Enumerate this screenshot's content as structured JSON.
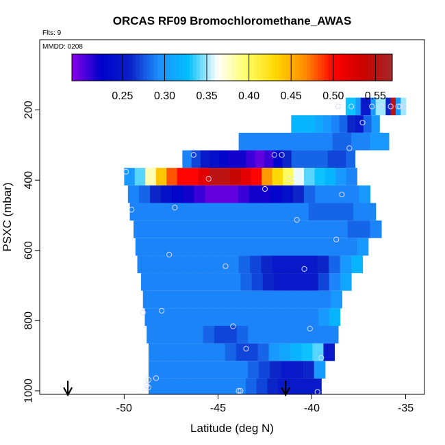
{
  "chart_data": {
    "type": "heatmap",
    "title": "ORCAS RF09 Bromochloromethane_AWAS",
    "subtitle_flts": "Flts: 9",
    "subtitle_mmdd": "MMDD: 0208",
    "xlabel": "Latitude (deg N)",
    "ylabel": "PSXC (mbar)",
    "xlim": [
      -54.5,
      -34.0
    ],
    "ylim": [
      1010,
      0
    ],
    "x_ticks": [
      -50,
      -45,
      -40,
      -35
    ],
    "x_tick_labels": [
      "-50",
      "-45",
      "-40",
      "-35"
    ],
    "y_ticks": [
      200,
      400,
      600,
      800,
      1000
    ],
    "y_tick_labels": [
      "200",
      "400",
      "600",
      "800",
      "1000"
    ],
    "colorbar": {
      "range": [
        0.19,
        0.57
      ],
      "ticks": [
        0.25,
        0.3,
        0.35,
        0.4,
        0.45,
        0.5,
        0.55
      ],
      "tick_labels": [
        "0.25",
        "0.30",
        "0.35",
        "0.40",
        "0.45",
        "0.50",
        "0.55"
      ],
      "colors": [
        "#8a00e6",
        "#0000cc",
        "#0a22c8",
        "#1e90ff",
        "#00bfff",
        "#ffffff",
        "#ffff66",
        "#ffd700",
        "#ff8c00",
        "#ff0000",
        "#cc0000",
        "#a52a2a"
      ]
    },
    "rows": [
      {
        "p": 190,
        "lat_start": -38.2,
        "lat_end": -35.0,
        "values": [
          0.33,
          0.33,
          0.3,
          0.25,
          0.25,
          0.3,
          0.35,
          0.35,
          0.26,
          0.55,
          0.3,
          0.35
        ]
      },
      {
        "p": 240,
        "lat_start": -41.1,
        "lat_end": -36.4,
        "values": [
          0.32,
          0.32,
          0.32,
          0.31,
          0.3,
          0.29,
          0.28,
          0.26,
          0.25,
          0.28,
          0.3
        ]
      },
      {
        "p": 290,
        "lat_start": -43.9,
        "lat_end": -35.9,
        "values": [
          0.29,
          0.29,
          0.29,
          0.29,
          0.29,
          0.29,
          0.29,
          0.29,
          0.29,
          0.29,
          0.28,
          0.28,
          0.29,
          0.29,
          0.3,
          0.3
        ]
      },
      {
        "p": 340,
        "lat_start": -46.9,
        "lat_end": -37.7,
        "values": [
          0.29,
          0.27,
          0.25,
          0.24,
          0.23,
          0.22,
          0.22,
          0.21,
          0.2,
          0.21,
          0.23,
          0.26,
          0.28,
          0.28,
          0.28,
          0.28,
          0.27,
          0.27,
          0.28
        ]
      },
      {
        "p": 390,
        "lat_start": -50.0,
        "lat_end": -37.6,
        "values": [
          0.3,
          0.34,
          0.38,
          0.44,
          0.48,
          0.5,
          0.5,
          0.52,
          0.55,
          0.55,
          0.54,
          0.52,
          0.5,
          0.46,
          0.43,
          0.4,
          0.36,
          0.34,
          0.33,
          0.32,
          0.3,
          0.29
        ]
      },
      {
        "p": 440,
        "lat_start": -49.8,
        "lat_end": -36.9,
        "values": [
          0.29,
          0.28,
          0.26,
          0.24,
          0.23,
          0.22,
          0.21,
          0.2,
          0.2,
          0.2,
          0.21,
          0.22,
          0.22,
          0.23,
          0.24,
          0.26,
          0.28,
          0.29,
          0.29,
          0.29,
          0.29,
          0.3
        ]
      },
      {
        "p": 490,
        "lat_start": -49.7,
        "lat_end": -36.6,
        "values": [
          0.29,
          0.29,
          0.29,
          0.29,
          0.29,
          0.29,
          0.29,
          0.29,
          0.29,
          0.29,
          0.29,
          0.29,
          0.29,
          0.29,
          0.29,
          0.29,
          0.28,
          0.28,
          0.28,
          0.28,
          0.29,
          0.29
        ]
      },
      {
        "p": 540,
        "lat_start": -49.5,
        "lat_end": -36.3,
        "values": [
          0.29,
          0.29,
          0.29,
          0.29,
          0.29,
          0.29,
          0.29,
          0.29,
          0.29,
          0.29,
          0.29,
          0.29,
          0.29,
          0.29,
          0.29,
          0.29,
          0.29,
          0.29,
          0.29,
          0.28,
          0.28,
          0.29
        ]
      },
      {
        "p": 590,
        "lat_start": -49.4,
        "lat_end": -37.0,
        "values": [
          0.29,
          0.29,
          0.29,
          0.29,
          0.29,
          0.29,
          0.29,
          0.29,
          0.29,
          0.29,
          0.29,
          0.29,
          0.29,
          0.29,
          0.29,
          0.29,
          0.29,
          0.29,
          0.29,
          0.29,
          0.3
        ]
      },
      {
        "p": 640,
        "lat_start": -49.3,
        "lat_end": -37.3,
        "values": [
          0.29,
          0.29,
          0.29,
          0.29,
          0.29,
          0.29,
          0.29,
          0.29,
          0.29,
          0.28,
          0.27,
          0.26,
          0.25,
          0.25,
          0.25,
          0.25,
          0.26,
          0.28,
          0.3,
          0.32
        ]
      },
      {
        "p": 690,
        "lat_start": -49.1,
        "lat_end": -37.9,
        "values": [
          0.29,
          0.29,
          0.29,
          0.29,
          0.29,
          0.29,
          0.29,
          0.29,
          0.29,
          0.28,
          0.27,
          0.26,
          0.25,
          0.25,
          0.25,
          0.25,
          0.27,
          0.29,
          0.31
        ]
      },
      {
        "p": 740,
        "lat_start": -49.0,
        "lat_end": -38.4,
        "values": [
          0.29,
          0.29,
          0.29,
          0.29,
          0.29,
          0.29,
          0.29,
          0.29,
          0.29,
          0.29,
          0.29,
          0.29,
          0.29,
          0.29,
          0.29,
          0.29,
          0.29,
          0.3
        ]
      },
      {
        "p": 790,
        "lat_start": -48.9,
        "lat_end": -38.5,
        "values": [
          0.29,
          0.29,
          0.29,
          0.29,
          0.29,
          0.29,
          0.29,
          0.29,
          0.29,
          0.29,
          0.29,
          0.29,
          0.29,
          0.29,
          0.29,
          0.29,
          0.3,
          0.32
        ]
      },
      {
        "p": 840,
        "lat_start": -48.8,
        "lat_end": -38.6,
        "values": [
          0.29,
          0.29,
          0.29,
          0.29,
          0.29,
          0.28,
          0.27,
          0.27,
          0.28,
          0.29,
          0.29,
          0.29,
          0.29,
          0.29,
          0.29,
          0.29,
          0.29
        ]
      },
      {
        "p": 890,
        "lat_start": -48.7,
        "lat_end": -38.8,
        "values": [
          0.29,
          0.29,
          0.29,
          0.29,
          0.29,
          0.29,
          0.29,
          0.28,
          0.27,
          0.27,
          0.28,
          0.3,
          0.31,
          0.32,
          0.33,
          0.34,
          0.25
        ]
      },
      {
        "p": 940,
        "lat_start": -48.7,
        "lat_end": -39.3,
        "values": [
          0.29,
          0.29,
          0.29,
          0.29,
          0.29,
          0.29,
          0.29,
          0.29,
          0.29,
          0.28,
          0.27,
          0.26,
          0.25,
          0.25,
          0.26,
          0.3
        ]
      },
      {
        "p": 990,
        "lat_start": -48.7,
        "lat_end": -39.5,
        "values": [
          0.29,
          0.29,
          0.29,
          0.29,
          0.29,
          0.29,
          0.29,
          0.29,
          0.29,
          0.28,
          0.27,
          0.26,
          0.25,
          0.25,
          0.25,
          0.25
        ]
      }
    ],
    "sample_points": [
      {
        "lat": -37.9,
        "p": 190
      },
      {
        "lat": -36.8,
        "p": 190
      },
      {
        "lat": -36.3,
        "p": 190
      },
      {
        "lat": -35.8,
        "p": 190
      },
      {
        "lat": -35.4,
        "p": 190
      },
      {
        "lat": -35.1,
        "p": 190
      },
      {
        "lat": -38.6,
        "p": 190
      },
      {
        "lat": -35.3,
        "p": 190
      },
      {
        "lat": -37.3,
        "p": 236
      },
      {
        "lat": -38.0,
        "p": 309
      },
      {
        "lat": -46.3,
        "p": 328
      },
      {
        "lat": -42.0,
        "p": 328
      },
      {
        "lat": -41.6,
        "p": 328
      },
      {
        "lat": -49.9,
        "p": 376
      },
      {
        "lat": -45.5,
        "p": 396
      },
      {
        "lat": -41.2,
        "p": 396
      },
      {
        "lat": -42.5,
        "p": 425
      },
      {
        "lat": -38.4,
        "p": 441
      },
      {
        "lat": -47.3,
        "p": 478
      },
      {
        "lat": -49.6,
        "p": 484
      },
      {
        "lat": -40.8,
        "p": 513
      },
      {
        "lat": -38.7,
        "p": 569
      },
      {
        "lat": -47.6,
        "p": 612
      },
      {
        "lat": -44.6,
        "p": 645
      },
      {
        "lat": -40.4,
        "p": 653
      },
      {
        "lat": -49.0,
        "p": 777
      },
      {
        "lat": -48.0,
        "p": 772
      },
      {
        "lat": -44.2,
        "p": 816
      },
      {
        "lat": -40.1,
        "p": 823
      },
      {
        "lat": -43.5,
        "p": 880
      },
      {
        "lat": -39.5,
        "p": 906
      },
      {
        "lat": -48.7,
        "p": 969
      },
      {
        "lat": -48.3,
        "p": 964
      },
      {
        "lat": -48.8,
        "p": 985
      },
      {
        "lat": -48.7,
        "p": 990
      },
      {
        "lat": -43.9,
        "p": 1000
      },
      {
        "lat": -43.8,
        "p": 1000
      },
      {
        "lat": -39.7,
        "p": 1003
      }
    ],
    "arrows": [
      {
        "lat": -53.0
      },
      {
        "lat": -41.4
      }
    ]
  }
}
